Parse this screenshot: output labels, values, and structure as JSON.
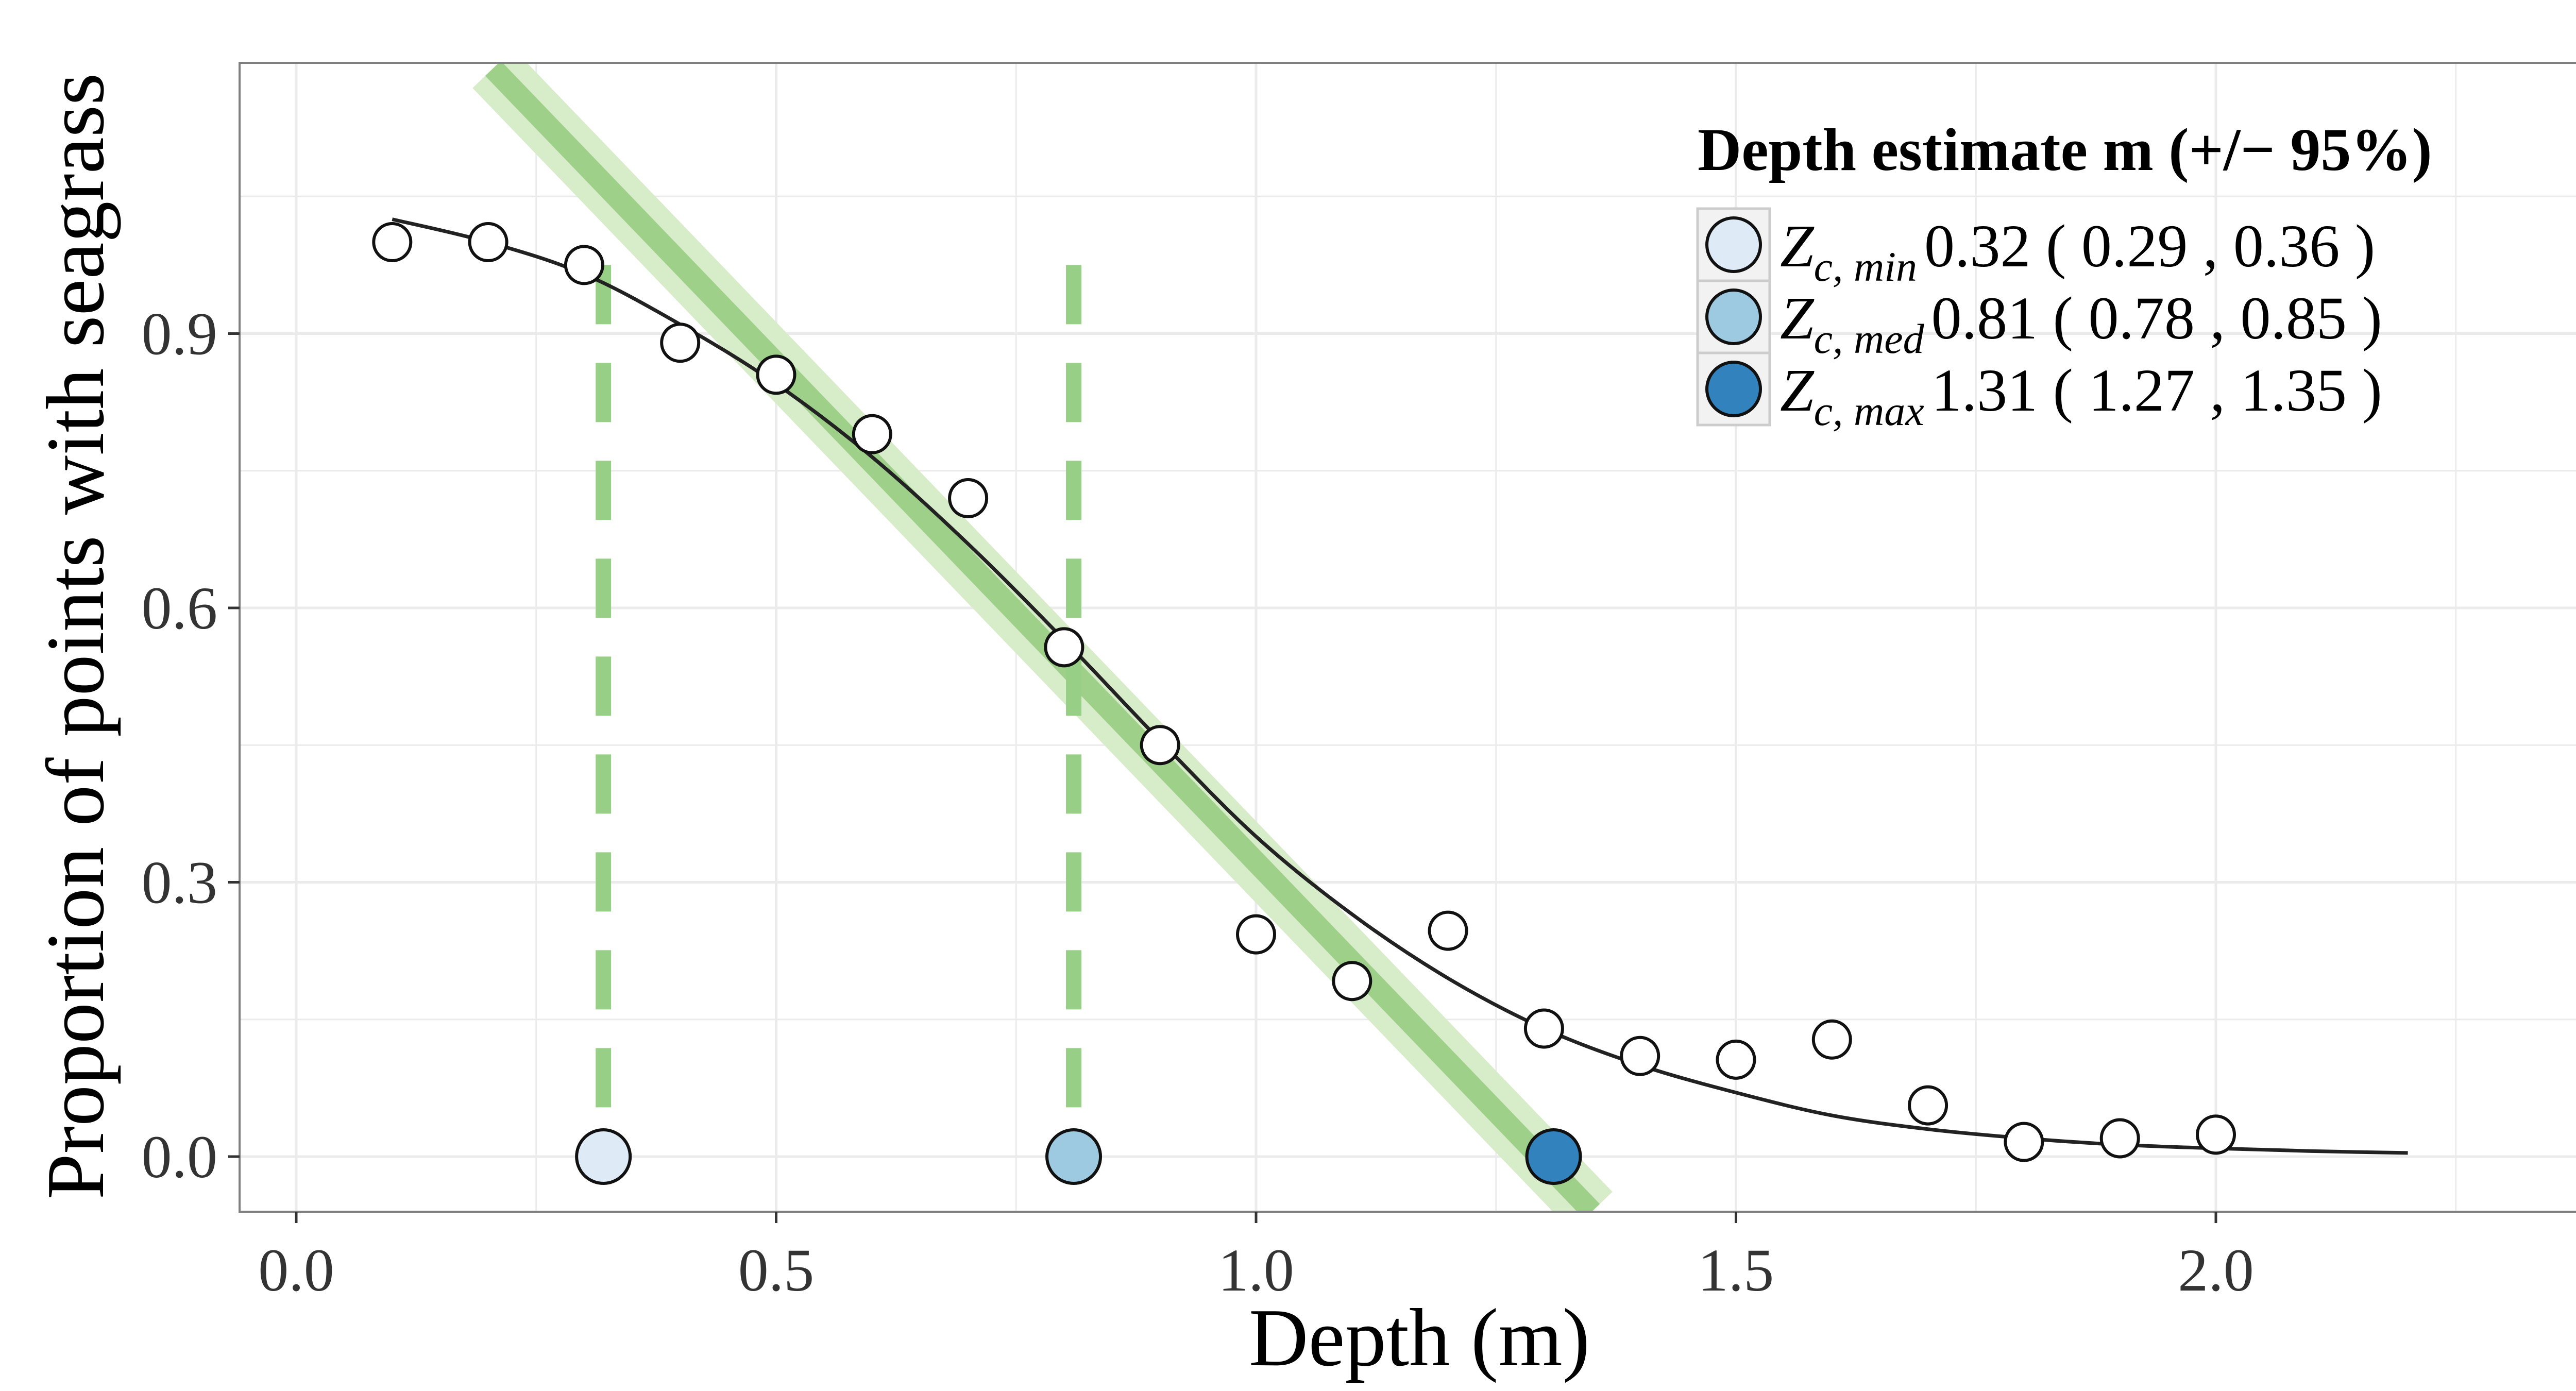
{
  "chart_data": {
    "type": "scatter",
    "xlabel": "Depth (m)",
    "ylabel": "Proportion of points with seagrass",
    "xlim": [
      -0.06,
      2.4
    ],
    "ylim": [
      -0.06,
      1.2
    ],
    "x_ticks": [
      "0.0",
      "0.5",
      "1.0",
      "1.5",
      "2.0"
    ],
    "x_tick_values": [
      0.0,
      0.5,
      1.0,
      1.5,
      2.0
    ],
    "y_ticks": [
      "0.0",
      "0.3",
      "0.6",
      "0.9"
    ],
    "y_tick_values": [
      0.0,
      0.3,
      0.6,
      0.9
    ],
    "grid": true,
    "observed_points": {
      "x": [
        0.1,
        0.2,
        0.3,
        0.4,
        0.5,
        0.6,
        0.7,
        0.8,
        0.9,
        1.0,
        1.1,
        1.2,
        1.3,
        1.4,
        1.5,
        1.6,
        1.7,
        1.8,
        1.9,
        2.0
      ],
      "y": [
        1.0,
        1.0,
        0.975,
        0.89,
        0.855,
        0.79,
        0.72,
        0.557,
        0.45,
        0.243,
        0.192,
        0.247,
        0.14,
        0.11,
        0.106,
        0.128,
        0.056,
        0.016,
        0.02,
        0.024
      ]
    },
    "fitted_curve": {
      "x": [
        0.1,
        0.2,
        0.3,
        0.4,
        0.5,
        0.6,
        0.7,
        0.8,
        0.9,
        1.0,
        1.1,
        1.2,
        1.3,
        1.4,
        1.5,
        1.6,
        1.7,
        1.8,
        1.9,
        2.0,
        2.1,
        2.2
      ],
      "y": [
        1.025,
        1.0,
        0.965,
        0.91,
        0.845,
        0.765,
        0.67,
        0.565,
        0.455,
        0.35,
        0.265,
        0.195,
        0.14,
        0.1,
        0.07,
        0.045,
        0.03,
        0.02,
        0.013,
        0.009,
        0.006,
        0.004
      ]
    },
    "linear_fit": {
      "x": [
        0.205,
        1.35
      ],
      "y": [
        1.19,
        -0.06
      ]
    },
    "legend": {
      "title": "Depth estimate m (+/− 95%)",
      "placement": "top-right",
      "entries": [
        {
          "label_main": "Z",
          "label_sub": "c, min",
          "text": "0.32 ( 0.29 ,  0.36 )",
          "value": 0.32,
          "lower": 0.29,
          "upper": 0.36,
          "color": "#deebf7"
        },
        {
          "label_main": "Z",
          "label_sub": "c, med",
          "text": "0.81 ( 0.78 ,  0.85 )",
          "value": 0.81,
          "lower": 0.78,
          "upper": 0.85,
          "color": "#9ecae1"
        },
        {
          "label_main": "Z",
          "label_sub": "c, max",
          "text": "1.31 ( 1.27 ,  1.35 )",
          "value": 1.31,
          "lower": 1.27,
          "upper": 1.35,
          "color": "#3182bd"
        }
      ]
    },
    "colors": {
      "line_fit": "#9fd08a",
      "line_band": "#d7ecc9",
      "dashed": "#98cf86",
      "curve": "#222222",
      "grid": "#ebebeb",
      "panel_border": "#7f7f7f"
    }
  }
}
